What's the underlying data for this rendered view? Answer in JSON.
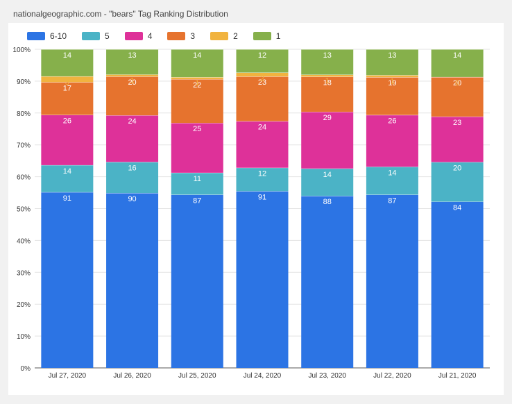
{
  "header": {
    "title": "nationalgeographic.com - \"bears\" Tag Ranking Distribution"
  },
  "chart_data": {
    "type": "bar",
    "stacked": true,
    "normalized": true,
    "categories": [
      "Jul 27, 2020",
      "Jul 26, 2020",
      "Jul 25, 2020",
      "Jul 24, 2020",
      "Jul 23, 2020",
      "Jul 22, 2020",
      "Jul 21, 2020"
    ],
    "y_ticks": [
      "0%",
      "10%",
      "20%",
      "30%",
      "40%",
      "50%",
      "60%",
      "70%",
      "80%",
      "90%",
      "100%"
    ],
    "ylim": [
      0,
      100
    ],
    "legend_position": "top-left",
    "series": [
      {
        "name": "6-10",
        "color": "#2c74e4",
        "label_color": "#ffffff",
        "values": [
          91,
          90,
          87,
          91,
          88,
          87,
          84
        ]
      },
      {
        "name": "5",
        "color": "#4bb3c6",
        "label_color": "#ffffff",
        "values": [
          14,
          16,
          11,
          12,
          14,
          14,
          20
        ]
      },
      {
        "name": "4",
        "color": "#de3199",
        "label_color": "#ffffff",
        "values": [
          26,
          24,
          25,
          24,
          29,
          26,
          23
        ]
      },
      {
        "name": "3",
        "color": "#e6732e",
        "label_color": "#ffffff",
        "values": [
          17,
          20,
          22,
          23,
          18,
          19,
          20
        ]
      },
      {
        "name": "2",
        "color": "#f1b33f",
        "label_color": "#f1b33f",
        "values": [
          3,
          1,
          1,
          2,
          1,
          1,
          0
        ]
      },
      {
        "name": "1",
        "color": "#86b04b",
        "label_color": "#ffffff",
        "values": [
          14,
          13,
          14,
          12,
          13,
          13,
          14
        ]
      }
    ]
  }
}
